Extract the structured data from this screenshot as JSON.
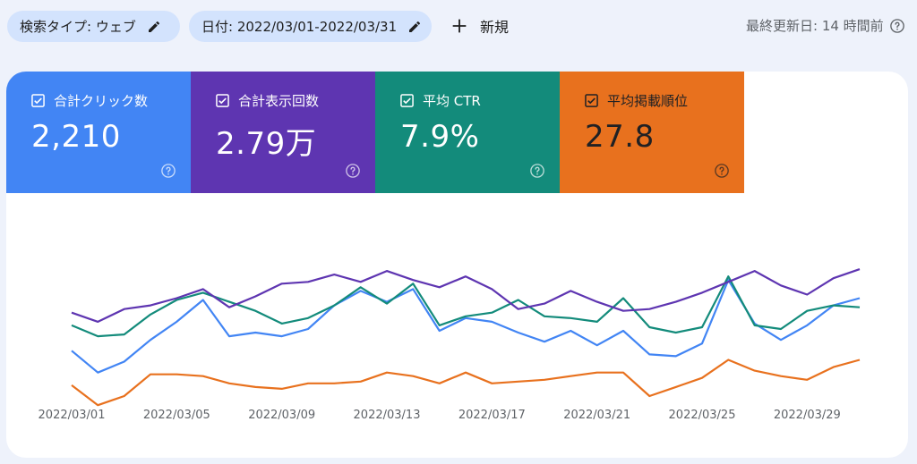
{
  "toolbar": {
    "search_type_chip": "検索タイプ: ウェブ",
    "date_chip": "日付: 2022/03/01-2022/03/31",
    "new_button": "新規",
    "last_updated": "最終更新日: 14 時間前"
  },
  "metrics": [
    {
      "label": "合計クリック数",
      "value": "2,210",
      "color": "#4285f4",
      "text_color": "#ffffff",
      "checked": true
    },
    {
      "label": "合計表示回数",
      "value": "2.79万",
      "color": "#5e35b1",
      "text_color": "#ffffff",
      "checked": true
    },
    {
      "label": "平均 CTR",
      "value": "7.9%",
      "color": "#138b7b",
      "text_color": "#ffffff",
      "checked": true
    },
    {
      "label": "平均掲載順位",
      "value": "27.8",
      "color": "#e8711e",
      "text_color": "#202124",
      "checked": true
    }
  ],
  "chart_data": {
    "type": "line",
    "x": [
      "2022/03/01",
      "2022/03/02",
      "2022/03/03",
      "2022/03/04",
      "2022/03/05",
      "2022/03/06",
      "2022/03/07",
      "2022/03/08",
      "2022/03/09",
      "2022/03/10",
      "2022/03/11",
      "2022/03/12",
      "2022/03/13",
      "2022/03/14",
      "2022/03/15",
      "2022/03/16",
      "2022/03/17",
      "2022/03/18",
      "2022/03/19",
      "2022/03/20",
      "2022/03/21",
      "2022/03/22",
      "2022/03/23",
      "2022/03/24",
      "2022/03/25",
      "2022/03/26",
      "2022/03/27",
      "2022/03/28",
      "2022/03/29",
      "2022/03/30",
      "2022/03/31"
    ],
    "xticks": [
      "2022/03/01",
      "2022/03/05",
      "2022/03/09",
      "2022/03/13",
      "2022/03/17",
      "2022/03/21",
      "2022/03/25",
      "2022/03/29"
    ],
    "ylim": [
      0,
      100
    ],
    "series": [
      {
        "color": "#5e35b1",
        "values": [
          62,
          67,
          60,
          58,
          54,
          49,
          59,
          53,
          46,
          45,
          41,
          45,
          39,
          44,
          48,
          42,
          49,
          60,
          57,
          50,
          56,
          61,
          60,
          56,
          51,
          45,
          39,
          47,
          52,
          43,
          38
        ]
      },
      {
        "color": "#138b7b",
        "values": [
          69,
          75,
          74,
          63,
          55,
          51,
          56,
          61,
          68,
          65,
          58,
          48,
          57,
          46,
          69,
          64,
          62,
          55,
          64,
          65,
          67,
          54,
          70,
          73,
          70,
          42,
          69,
          71,
          61,
          58,
          59
        ]
      },
      {
        "color": "#4285f4",
        "values": [
          83,
          95,
          89,
          77,
          67,
          55,
          75,
          73,
          75,
          71,
          58,
          50,
          56,
          49,
          72,
          65,
          67,
          73,
          78,
          72,
          80,
          72,
          85,
          86,
          79,
          44,
          68,
          77,
          69,
          58,
          54
        ]
      },
      {
        "color": "#e8711e",
        "values": [
          102,
          113,
          108,
          96,
          96,
          97,
          101,
          103,
          104,
          101,
          101,
          100,
          95,
          97,
          101,
          95,
          101,
          100,
          99,
          97,
          95,
          95,
          108,
          103,
          98,
          88,
          94,
          97,
          99,
          92,
          88
        ]
      }
    ]
  }
}
